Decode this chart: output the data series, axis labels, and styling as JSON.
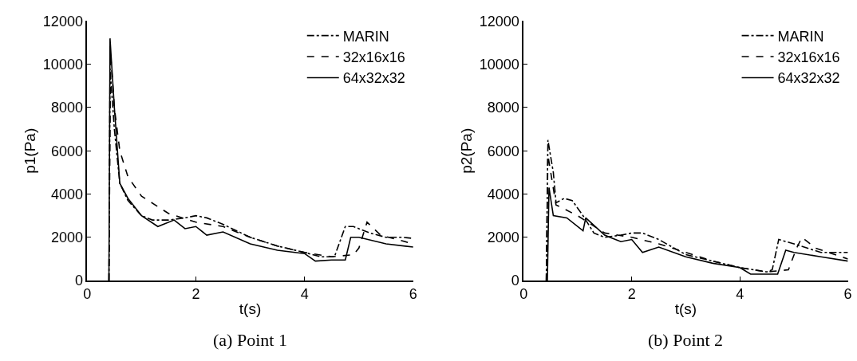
{
  "chart_data": [
    {
      "type": "line",
      "title": "(a) Point 1",
      "xlabel": "t(s)",
      "ylabel": "p1(Pa)",
      "xlim": [
        0,
        6
      ],
      "ylim": [
        0,
        12000
      ],
      "xticks": [
        0,
        2,
        4,
        6
      ],
      "yticks": [
        0,
        2000,
        4000,
        6000,
        8000,
        10000,
        12000
      ],
      "grid": false,
      "legend": "top right",
      "series": [
        {
          "name": "MARIN",
          "color": "#000000",
          "line_style": "dashdot",
          "x": [
            0.4,
            0.42,
            0.5,
            0.6,
            0.75,
            1.0,
            1.2,
            1.5,
            1.8,
            2.0,
            2.2,
            2.5,
            3.0,
            3.5,
            4.0,
            4.3,
            4.55,
            4.65,
            4.75,
            4.9,
            5.2,
            5.5,
            5.8,
            6.0
          ],
          "values": [
            0,
            9800,
            7000,
            4500,
            3700,
            3000,
            2800,
            2800,
            2900,
            3000,
            2900,
            2600,
            2000,
            1600,
            1300,
            1100,
            1100,
            1800,
            2500,
            2500,
            2200,
            2000,
            2000,
            1950
          ]
        },
        {
          "name": "32x16x16",
          "color": "#000000",
          "line_style": "dashed",
          "x": [
            0.4,
            0.43,
            0.5,
            0.6,
            0.75,
            1.0,
            1.5,
            2.0,
            2.5,
            3.0,
            3.5,
            4.0,
            4.5,
            4.9,
            5.0,
            5.15,
            5.4,
            6.0
          ],
          "values": [
            0,
            10500,
            8000,
            6000,
            4800,
            3900,
            3100,
            2700,
            2500,
            2000,
            1600,
            1300,
            1100,
            1200,
            1500,
            2700,
            2100,
            1700
          ]
        },
        {
          "name": "64x32x32",
          "color": "#000000",
          "line_style": "solid",
          "x": [
            0.4,
            0.42,
            0.5,
            0.6,
            0.75,
            1.0,
            1.3,
            1.6,
            1.8,
            2.0,
            2.2,
            2.5,
            3.0,
            3.5,
            4.0,
            4.2,
            4.5,
            4.75,
            4.85,
            5.0,
            5.5,
            6.0
          ],
          "values": [
            0,
            11200,
            8000,
            4500,
            3800,
            3000,
            2500,
            2800,
            2400,
            2500,
            2100,
            2250,
            1700,
            1400,
            1250,
            900,
            950,
            950,
            2000,
            2000,
            1700,
            1550
          ]
        }
      ]
    },
    {
      "type": "line",
      "title": "(b) Point 2",
      "xlabel": "t(s)",
      "ylabel": "p2(Pa)",
      "xlim": [
        0,
        6
      ],
      "ylim": [
        0,
        12000
      ],
      "xticks": [
        0,
        2,
        4,
        6
      ],
      "yticks": [
        0,
        2000,
        4000,
        6000,
        8000,
        10000,
        12000
      ],
      "grid": false,
      "legend": "top right",
      "series": [
        {
          "name": "MARIN",
          "color": "#000000",
          "line_style": "dashdot",
          "x": [
            0.42,
            0.45,
            0.55,
            0.6,
            0.75,
            0.9,
            1.1,
            1.3,
            1.5,
            1.8,
            2.0,
            2.2,
            2.5,
            3.0,
            3.5,
            4.0,
            4.5,
            4.6,
            4.72,
            5.0,
            5.5,
            6.0
          ],
          "values": [
            0,
            6500,
            5000,
            3600,
            3800,
            3700,
            3000,
            2200,
            2000,
            2100,
            2200,
            2200,
            1900,
            1200,
            900,
            600,
            400,
            500,
            1900,
            1700,
            1300,
            1300
          ]
        },
        {
          "name": "32x16x16",
          "color": "#000000",
          "line_style": "dashed",
          "x": [
            0.42,
            0.45,
            0.6,
            1.0,
            1.5,
            2.0,
            2.5,
            3.0,
            3.5,
            4.0,
            4.5,
            4.9,
            5.05,
            5.15,
            5.4,
            6.0
          ],
          "values": [
            0,
            5800,
            3500,
            3000,
            2200,
            2000,
            1700,
            1300,
            900,
            600,
            400,
            500,
            1500,
            2000,
            1500,
            1000
          ]
        },
        {
          "name": "64x32x32",
          "color": "#000000",
          "line_style": "solid",
          "x": [
            0.44,
            0.47,
            0.55,
            0.8,
            1.1,
            1.15,
            1.5,
            1.8,
            2.0,
            2.2,
            2.5,
            3.0,
            3.5,
            4.0,
            4.2,
            4.7,
            4.85,
            5.0,
            5.5,
            6.0
          ],
          "values": [
            0,
            4300,
            3000,
            2900,
            2300,
            2900,
            2100,
            1800,
            1900,
            1300,
            1550,
            1100,
            800,
            600,
            300,
            300,
            1400,
            1300,
            1100,
            900
          ]
        }
      ]
    }
  ]
}
